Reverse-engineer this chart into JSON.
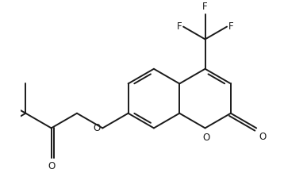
{
  "background_color": "#ffffff",
  "line_color": "#1a1a1a",
  "line_width": 1.4,
  "font_size": 8.5,
  "fig_width": 3.58,
  "fig_height": 2.18,
  "dpi": 100,
  "xlim": [
    -4.2,
    4.0
  ],
  "ylim": [
    -2.6,
    2.8
  ]
}
